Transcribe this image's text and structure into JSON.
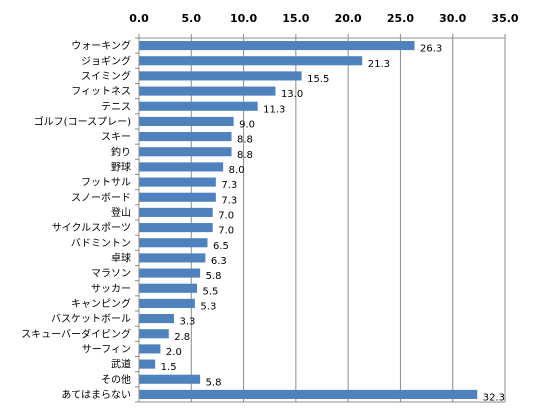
{
  "chart_data": {
    "type": "bar",
    "orientation": "horizontal",
    "title": "",
    "xlabel": "",
    "ylabel": "",
    "xlim": [
      0,
      35
    ],
    "ticks": [
      "0.0",
      "5.0",
      "10.0",
      "15.0",
      "20.0",
      "25.0",
      "30.0",
      "35.0"
    ],
    "tick_values": [
      0,
      5,
      10,
      15,
      20,
      25,
      30,
      35
    ],
    "axis_position": "top",
    "grid": true,
    "legend": "none",
    "bar_color": "#4f81bd",
    "categories": [
      "ウォーキング",
      "ジョギング",
      "スイミング",
      "フィットネス",
      "テニス",
      "ゴルフ(コースプレー)",
      "スキー",
      "釣り",
      "野球",
      "フットサル",
      "スノーボード",
      "登山",
      "サイクルスポーツ",
      "バドミントン",
      "卓球",
      "マラソン",
      "サッカー",
      "キャンピング",
      "バスケットボール",
      "スキューバーダイビング",
      "サーフィン",
      "武道",
      "その他",
      "あてはまらない"
    ],
    "values": [
      26.3,
      21.3,
      15.5,
      13.0,
      11.3,
      9.0,
      8.8,
      8.8,
      8.0,
      7.3,
      7.3,
      7.0,
      7.0,
      6.5,
      6.3,
      5.8,
      5.5,
      5.3,
      3.3,
      2.8,
      2.0,
      1.5,
      5.8,
      32.3
    ],
    "value_labels": [
      "26.3",
      "21.3",
      "15.5",
      "13.0",
      "11.3",
      "9.0",
      "8.8",
      "8.8",
      "8.0",
      "7.3",
      "7.3",
      "7.0",
      "7.0",
      "6.5",
      "6.3",
      "5.8",
      "5.5",
      "5.3",
      "3.3",
      "2.8",
      "2.0",
      "1.5",
      "5.8",
      "32.3"
    ]
  }
}
